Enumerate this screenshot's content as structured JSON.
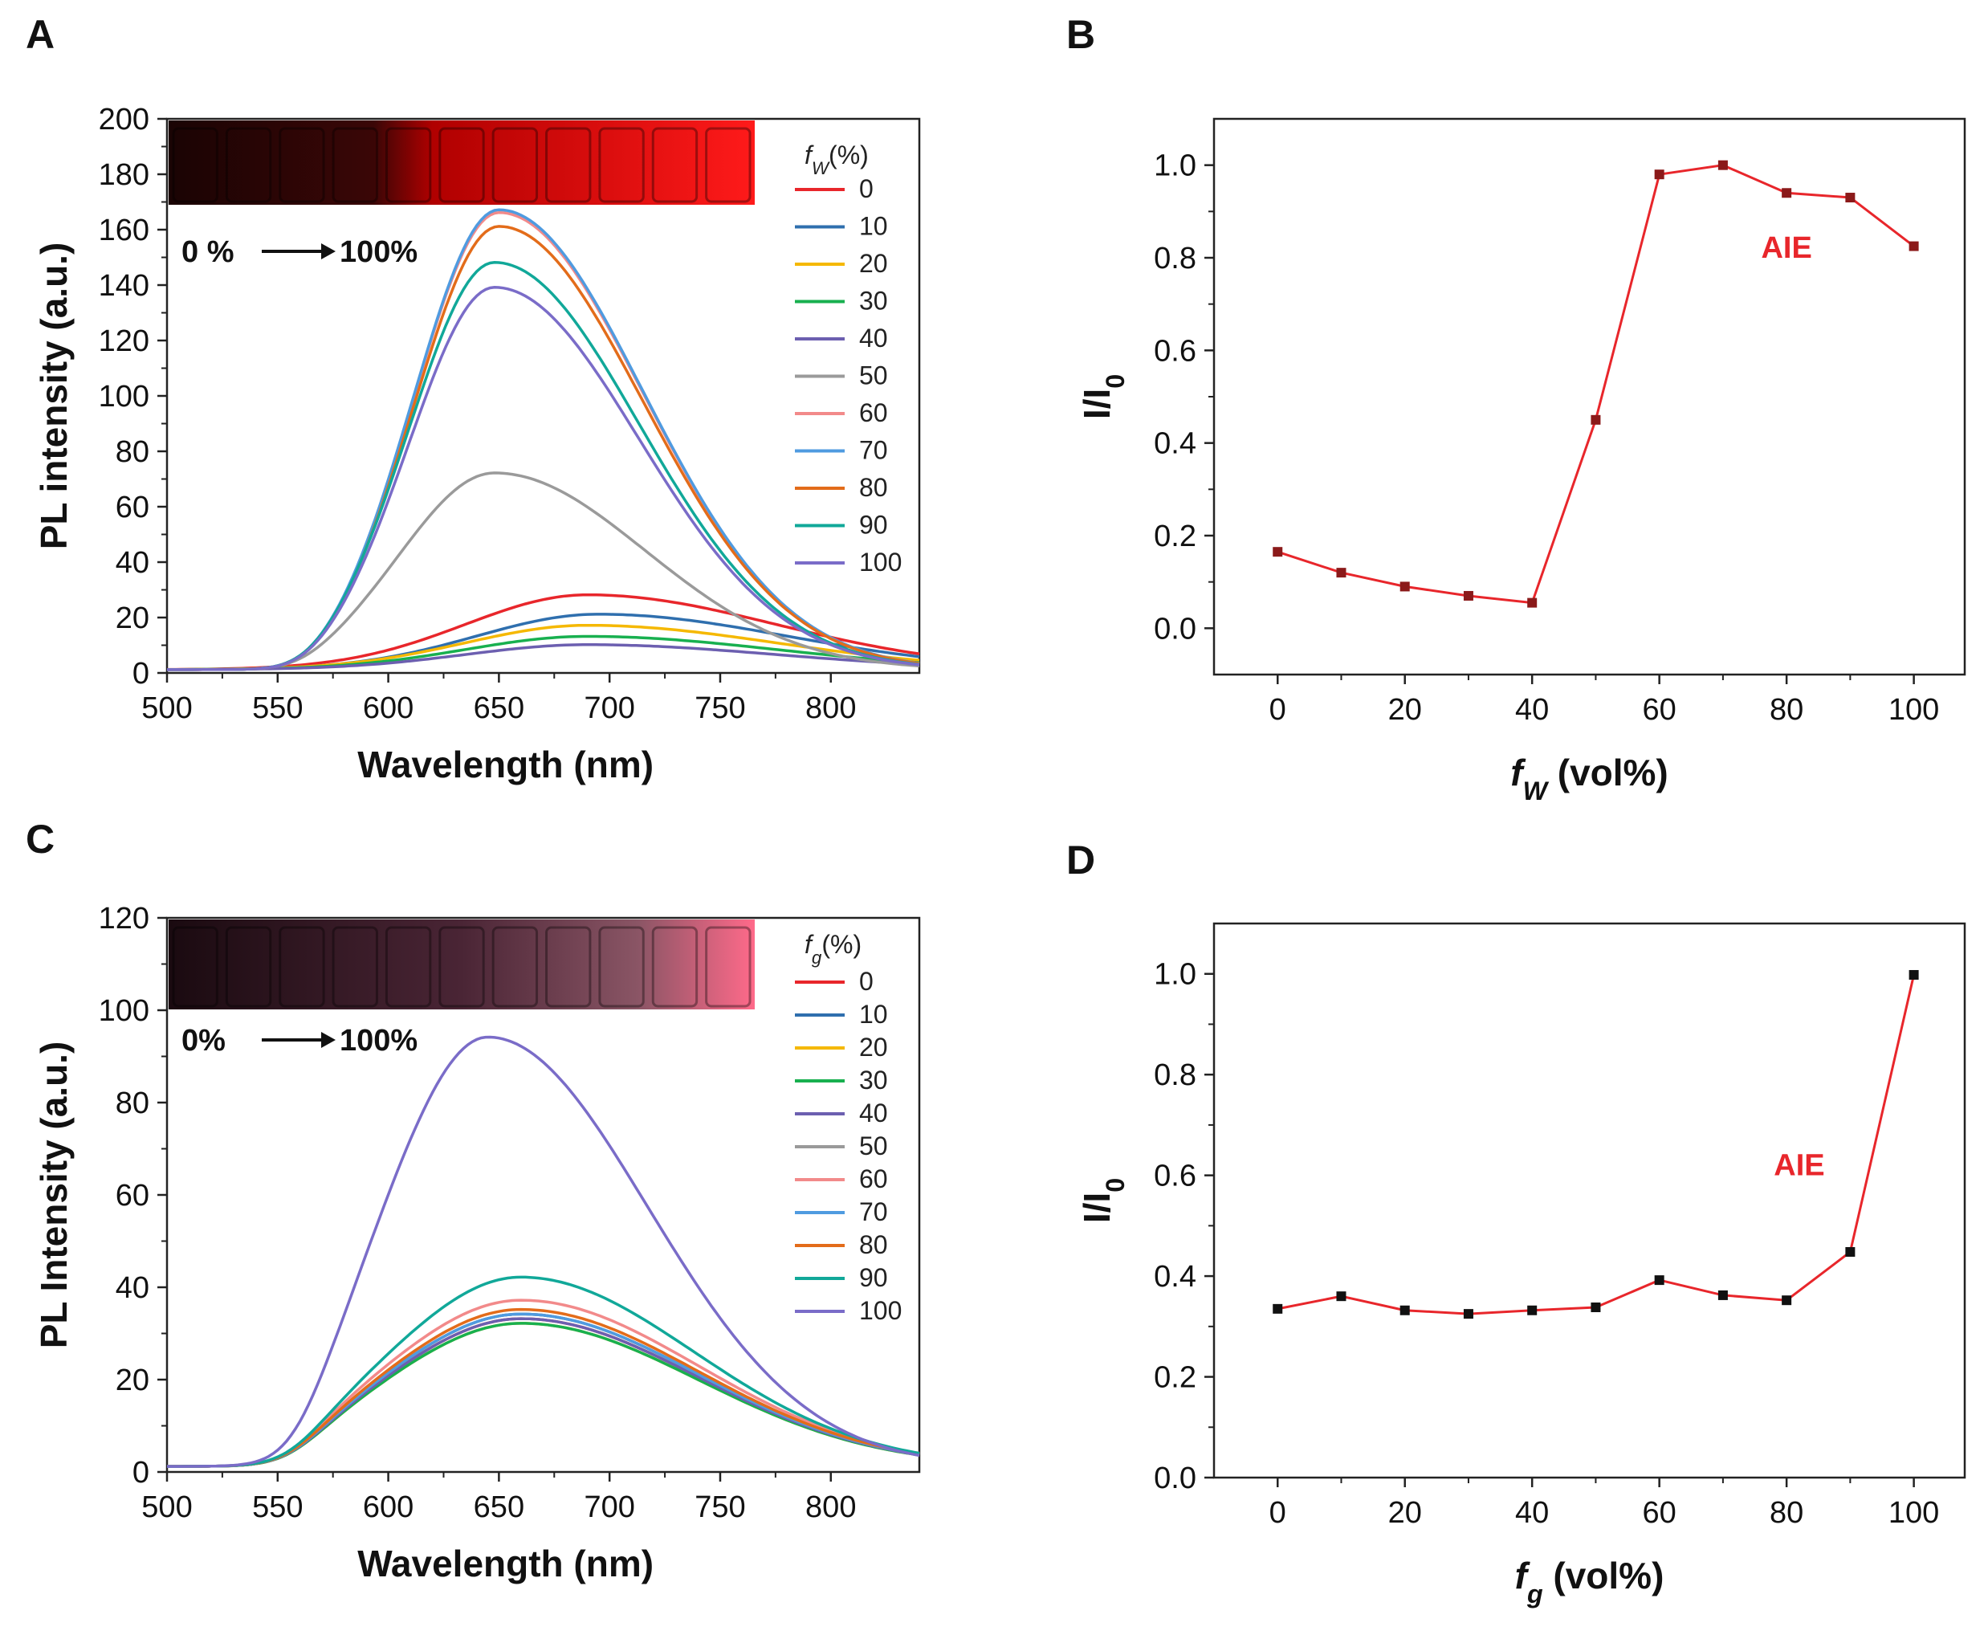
{
  "chart_data": [
    {
      "panel": "A",
      "type": "line",
      "xlabel": "Wavelength (nm)",
      "ylabel": "PL intensity (a.u.)",
      "xlim": [
        500,
        840
      ],
      "ylim": [
        0,
        200
      ],
      "xticks": [
        500,
        550,
        600,
        650,
        700,
        750,
        800
      ],
      "yticks": [
        0,
        20,
        40,
        60,
        80,
        100,
        120,
        140,
        160,
        180,
        200
      ],
      "legend_title_base": "f",
      "legend_title_sub": "W",
      "legend_title_suffix": "(%)",
      "annotation": {
        "start": "0 %",
        "end": "100%"
      },
      "inset": "photo of vials (dark to bright red fluorescence)",
      "series": [
        {
          "name": "0",
          "color": "#e8262b",
          "peak_x": 690,
          "peak": 27,
          "onset": 0,
          "sL": 55,
          "sR": 85
        },
        {
          "name": "10",
          "color": "#2f6fae",
          "peak_x": 695,
          "peak": 20,
          "onset": 0,
          "sL": 55,
          "sR": 85
        },
        {
          "name": "20",
          "color": "#f5b800",
          "peak_x": 690,
          "peak": 16,
          "onset": 0,
          "sL": 55,
          "sR": 85
        },
        {
          "name": "30",
          "color": "#18b04f",
          "peak_x": 690,
          "peak": 12,
          "onset": 0,
          "sL": 55,
          "sR": 85
        },
        {
          "name": "40",
          "color": "#6c5fb0",
          "peak_x": 690,
          "peak": 9,
          "onset": 0,
          "sL": 55,
          "sR": 85
        },
        {
          "name": "50",
          "color": "#9a9a9a",
          "peak_x": 648,
          "peak": 71,
          "onset": 1,
          "sL": 42,
          "sR": 68
        },
        {
          "name": "60",
          "color": "#f28a8a",
          "peak_x": 650,
          "peak": 165,
          "onset": 1,
          "sL": 38,
          "sR": 65
        },
        {
          "name": "70",
          "color": "#4f9be0",
          "peak_x": 650,
          "peak": 166,
          "onset": 1,
          "sL": 38,
          "sR": 65
        },
        {
          "name": "80",
          "color": "#e36c1a",
          "peak_x": 650,
          "peak": 160,
          "onset": 1,
          "sL": 38,
          "sR": 65
        },
        {
          "name": "90",
          "color": "#11a899",
          "peak_x": 648,
          "peak": 147,
          "onset": 1,
          "sL": 38,
          "sR": 65
        },
        {
          "name": "100",
          "color": "#7a6cc8",
          "peak_x": 648,
          "peak": 138,
          "onset": 1,
          "sL": 38,
          "sR": 65
        }
      ]
    },
    {
      "panel": "B",
      "type": "line",
      "xlabel_base": "f",
      "xlabel_sub": "W",
      "xlabel_suffix": " (vol%)",
      "ylabel_base": "I/I",
      "ylabel_sub": "0",
      "xlim": [
        -10,
        108
      ],
      "ylim": [
        -0.1,
        1.1
      ],
      "xticks": [
        0,
        20,
        40,
        60,
        80,
        100
      ],
      "yticks": [
        "0.0",
        "0.2",
        "0.4",
        "0.6",
        "0.8",
        "1.0"
      ],
      "annotation": "AIE",
      "line_color": "#e8262b",
      "marker_color": "#8b1a1a",
      "x": [
        0,
        10,
        20,
        30,
        40,
        50,
        60,
        70,
        80,
        90,
        100
      ],
      "y": [
        0.165,
        0.12,
        0.09,
        0.07,
        0.055,
        0.45,
        0.98,
        1.0,
        0.94,
        0.93,
        0.825
      ]
    },
    {
      "panel": "C",
      "type": "line",
      "xlabel": "Wavelength (nm)",
      "ylabel": "PL Intensity (a.u.)",
      "xlim": [
        500,
        840
      ],
      "ylim": [
        0,
        120
      ],
      "xticks": [
        500,
        550,
        600,
        650,
        700,
        750,
        800
      ],
      "yticks": [
        0,
        20,
        40,
        60,
        80,
        100,
        120
      ],
      "legend_title_base": "f",
      "legend_title_sub": "g",
      "legend_title_suffix": "(%)",
      "annotation": {
        "start": "0%",
        "end": "100%"
      },
      "inset": "photo of vials (dim pink to pink fluorescence)",
      "series": [
        {
          "name": "0",
          "color": "#e8262b",
          "peak_x": 660,
          "peak": 32,
          "onset": 1,
          "sL": 62,
          "sR": 80
        },
        {
          "name": "10",
          "color": "#2f6fae",
          "peak_x": 660,
          "peak": 33,
          "onset": 1,
          "sL": 62,
          "sR": 80
        },
        {
          "name": "20",
          "color": "#f5b800",
          "peak_x": 660,
          "peak": 31,
          "onset": 1,
          "sL": 62,
          "sR": 80
        },
        {
          "name": "30",
          "color": "#18b04f",
          "peak_x": 660,
          "peak": 31,
          "onset": 1,
          "sL": 62,
          "sR": 80
        },
        {
          "name": "40",
          "color": "#6c5fb0",
          "peak_x": 660,
          "peak": 32,
          "onset": 1,
          "sL": 62,
          "sR": 80
        },
        {
          "name": "50",
          "color": "#9a9a9a",
          "peak_x": 660,
          "peak": 33,
          "onset": 1,
          "sL": 62,
          "sR": 80
        },
        {
          "name": "60",
          "color": "#f28a8a",
          "peak_x": 660,
          "peak": 36,
          "onset": 1,
          "sL": 62,
          "sR": 80
        },
        {
          "name": "70",
          "color": "#4f9be0",
          "peak_x": 660,
          "peak": 33,
          "onset": 1,
          "sL": 62,
          "sR": 80
        },
        {
          "name": "80",
          "color": "#e36c1a",
          "peak_x": 660,
          "peak": 34,
          "onset": 1,
          "sL": 62,
          "sR": 80
        },
        {
          "name": "90",
          "color": "#11a899",
          "peak_x": 660,
          "peak": 41,
          "onset": 1,
          "sL": 60,
          "sR": 78
        },
        {
          "name": "100",
          "color": "#7a6cc8",
          "peak_x": 645,
          "peak": 93,
          "onset": 1,
          "sL": 48,
          "sR": 72
        }
      ]
    },
    {
      "panel": "D",
      "type": "line",
      "xlabel_base": "f",
      "xlabel_sub": "g",
      "xlabel_suffix": " (vol%)",
      "ylabel_base": "I/I",
      "ylabel_sub": "0",
      "xlim": [
        -10,
        108
      ],
      "ylim": [
        0.0,
        1.1
      ],
      "xticks": [
        0,
        20,
        40,
        60,
        80,
        100
      ],
      "yticks": [
        "0.0",
        "0.2",
        "0.4",
        "0.6",
        "0.8",
        "1.0"
      ],
      "annotation": "AIE",
      "line_color": "#e8262b",
      "marker_color": "#111111",
      "x": [
        0,
        10,
        20,
        30,
        40,
        50,
        60,
        70,
        80,
        90,
        100
      ],
      "y": [
        0.335,
        0.36,
        0.332,
        0.325,
        0.332,
        0.338,
        0.392,
        0.362,
        0.352,
        0.448,
        0.998
      ]
    }
  ]
}
